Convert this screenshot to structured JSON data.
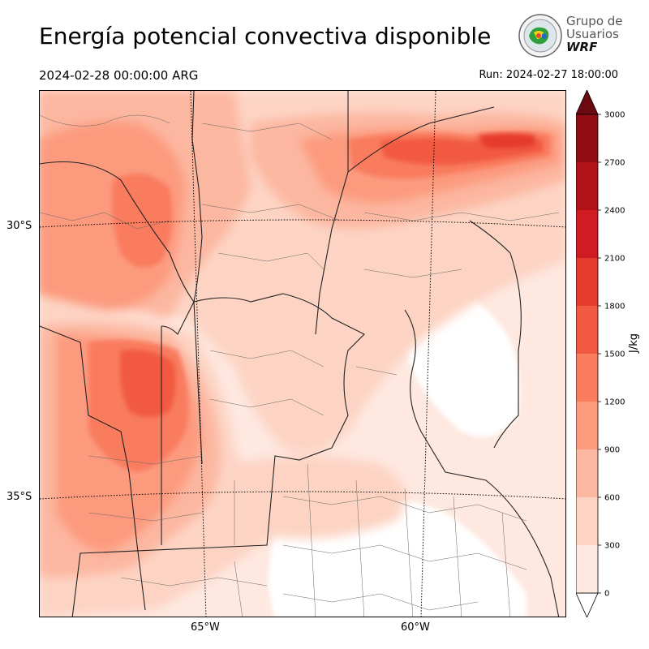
{
  "header": {
    "title": "Energía potencial convectiva disponible",
    "valid_time": "2024-02-28 00:00:00 ARG",
    "run_time": "Run: 2024-02-27 18:00:00"
  },
  "logo": {
    "line1": "Grupo de",
    "line2": "Usuarios",
    "line3": "WRF"
  },
  "map": {
    "lat_labels": [
      "30°S",
      "35°S"
    ],
    "lon_labels": [
      "65°W",
      "60°W"
    ]
  },
  "colorbar": {
    "label": "J/kg",
    "ticks": [
      "0",
      "300",
      "600",
      "900",
      "1200",
      "1500",
      "1800",
      "2100",
      "2400",
      "2700",
      "3000"
    ],
    "colors": [
      "#fee8e0",
      "#fdd4c4",
      "#fcb7a0",
      "#fc9a7e",
      "#f97c5e",
      "#f15a40",
      "#e53a2e",
      "#cf1b21",
      "#b11218",
      "#920d13",
      "#6b0a10"
    ],
    "extend_high_color": "#6b0a10",
    "extend_low_color": "#ffffff"
  }
}
